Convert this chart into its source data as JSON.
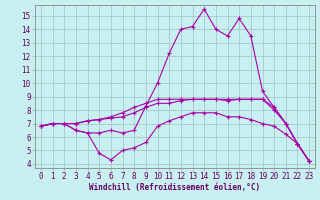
{
  "xlabel": "Windchill (Refroidissement éolien,°C)",
  "bg_color": "#c8f0f0",
  "grid_color": "#a8c8c8",
  "line_color": "#aa00aa",
  "x_ticks": [
    0,
    1,
    2,
    3,
    4,
    5,
    6,
    7,
    8,
    9,
    10,
    11,
    12,
    13,
    14,
    15,
    16,
    17,
    18,
    19,
    20,
    21,
    22,
    23
  ],
  "y_ticks": [
    4,
    5,
    6,
    7,
    8,
    9,
    10,
    11,
    12,
    13,
    14,
    15
  ],
  "ylim": [
    3.7,
    15.8
  ],
  "xlim": [
    -0.5,
    23.5
  ],
  "series": [
    [
      6.8,
      7.0,
      7.0,
      6.5,
      6.3,
      6.3,
      6.5,
      6.3,
      6.5,
      8.3,
      10.0,
      12.2,
      14.0,
      14.2,
      15.5,
      14.0,
      13.5,
      14.8,
      13.5,
      9.4,
      8.2,
      7.0,
      5.5,
      4.2
    ],
    [
      6.8,
      7.0,
      7.0,
      6.5,
      6.3,
      4.8,
      4.3,
      5.0,
      5.2,
      5.6,
      6.8,
      7.2,
      7.5,
      7.8,
      7.8,
      7.8,
      7.5,
      7.5,
      7.3,
      7.0,
      6.8,
      6.2,
      5.5,
      4.2
    ],
    [
      6.8,
      7.0,
      7.0,
      7.0,
      7.2,
      7.3,
      7.4,
      7.5,
      7.8,
      8.2,
      8.5,
      8.5,
      8.7,
      8.8,
      8.8,
      8.8,
      8.7,
      8.8,
      8.8,
      8.8,
      8.0,
      7.0,
      5.5,
      4.2
    ],
    [
      6.8,
      7.0,
      7.0,
      7.0,
      7.2,
      7.3,
      7.5,
      7.8,
      8.2,
      8.5,
      8.8,
      8.8,
      8.8,
      8.8,
      8.8,
      8.8,
      8.8,
      8.8,
      8.8,
      8.8,
      8.2,
      7.0,
      5.5,
      4.2
    ]
  ],
  "label_fontsize": 5.5,
  "xlabel_fontsize": 5.5
}
